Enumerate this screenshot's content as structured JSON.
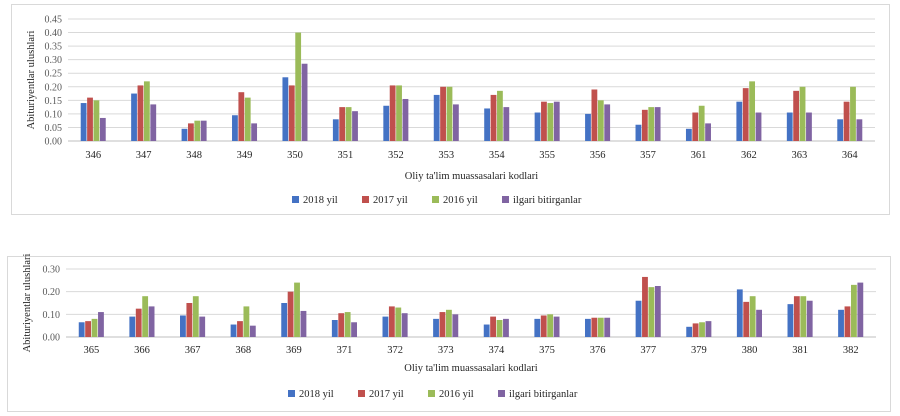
{
  "chart_data": [
    {
      "type": "bar",
      "xlabel": "Oliy ta'lim muassasalari kodlari",
      "ylabel": "Abituriyentlar ulushlari",
      "ylim": [
        0,
        0.45
      ],
      "yticks": [
        "0.00",
        "0.05",
        "0.10",
        "0.15",
        "0.20",
        "0.25",
        "0.30",
        "0.35",
        "0.40",
        "0.45"
      ],
      "grid": true,
      "legend_position": "bottom",
      "categories": [
        "346",
        "347",
        "348",
        "349",
        "350",
        "351",
        "352",
        "353",
        "354",
        "355",
        "356",
        "357",
        "361",
        "362",
        "363",
        "364"
      ],
      "series": [
        {
          "name": "2018 yil",
          "color": "#4472c4",
          "values": [
            0.14,
            0.175,
            0.045,
            0.095,
            0.235,
            0.08,
            0.13,
            0.17,
            0.12,
            0.105,
            0.1,
            0.06,
            0.045,
            0.145,
            0.105,
            0.08
          ]
        },
        {
          "name": "2017 yil",
          "color": "#c0504d",
          "values": [
            0.16,
            0.205,
            0.065,
            0.18,
            0.205,
            0.125,
            0.205,
            0.2,
            0.17,
            0.145,
            0.19,
            0.115,
            0.105,
            0.195,
            0.185,
            0.145
          ]
        },
        {
          "name": "2016 yil",
          "color": "#9bbb59",
          "values": [
            0.15,
            0.22,
            0.075,
            0.16,
            0.4,
            0.125,
            0.205,
            0.2,
            0.185,
            0.14,
            0.15,
            0.125,
            0.13,
            0.22,
            0.2,
            0.2
          ]
        },
        {
          "name": "ilgari bitirganlar",
          "color": "#8064a2",
          "values": [
            0.085,
            0.135,
            0.075,
            0.065,
            0.285,
            0.11,
            0.155,
            0.135,
            0.125,
            0.145,
            0.135,
            0.125,
            0.065,
            0.105,
            0.105,
            0.08
          ]
        }
      ]
    },
    {
      "type": "bar",
      "xlabel": "Oliy ta'lim muassasalari kodlari",
      "ylabel": "Abituriyentlar ulushlari",
      "ylim": [
        0,
        0.3
      ],
      "yticks": [
        "0.00",
        "0.10",
        "0.20",
        "0.30"
      ],
      "grid": true,
      "legend_position": "bottom",
      "categories": [
        "365",
        "366",
        "367",
        "368",
        "369",
        "371",
        "372",
        "373",
        "374",
        "375",
        "376",
        "377",
        "379",
        "380",
        "381",
        "382"
      ],
      "series": [
        {
          "name": "2018 yil",
          "color": "#4472c4",
          "values": [
            0.065,
            0.09,
            0.095,
            0.055,
            0.15,
            0.075,
            0.09,
            0.08,
            0.055,
            0.08,
            0.08,
            0.16,
            0.045,
            0.21,
            0.145,
            0.12
          ]
        },
        {
          "name": "2017 yil",
          "color": "#c0504d",
          "values": [
            0.07,
            0.125,
            0.15,
            0.07,
            0.2,
            0.105,
            0.135,
            0.11,
            0.09,
            0.095,
            0.085,
            0.265,
            0.06,
            0.155,
            0.18,
            0.135
          ]
        },
        {
          "name": "2016 yil",
          "color": "#9bbb59",
          "values": [
            0.08,
            0.18,
            0.18,
            0.135,
            0.24,
            0.11,
            0.13,
            0.12,
            0.075,
            0.1,
            0.085,
            0.22,
            0.065,
            0.18,
            0.18,
            0.23
          ]
        },
        {
          "name": "ilgari bitirganlar",
          "color": "#8064a2",
          "values": [
            0.11,
            0.135,
            0.09,
            0.05,
            0.115,
            0.065,
            0.105,
            0.1,
            0.08,
            0.09,
            0.085,
            0.225,
            0.07,
            0.12,
            0.16,
            0.24
          ]
        }
      ]
    }
  ]
}
